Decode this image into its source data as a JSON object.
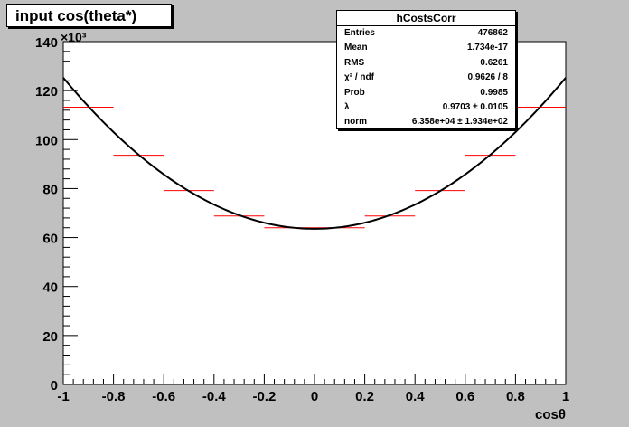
{
  "title": "input cos(theta*)",
  "stats": {
    "name": "hCostsCorr",
    "rows": [
      {
        "key": "Entries",
        "value": "476862"
      },
      {
        "key": "Mean",
        "value": "1.734e-17"
      },
      {
        "key": "RMS",
        "value": "0.6261"
      },
      {
        "key": "χ² / ndf",
        "value": "0.9626 / 8"
      },
      {
        "key": "Prob",
        "value": "0.9985"
      },
      {
        "key": "λ",
        "value": "0.9703 ± 0.0105"
      },
      {
        "key": "norm",
        "value": "6.358e+04 ± 1.934e+02"
      }
    ]
  },
  "colors": {
    "background": "#c0c0c0",
    "plot_area": "#ffffff",
    "histogram": "#ff0000",
    "fit": "#000000"
  },
  "chart_data": {
    "type": "line",
    "xlabel": "cosθ",
    "ylabel": "",
    "y_multiplier": "×10³",
    "xlim": [
      -1,
      1
    ],
    "ylim": [
      0,
      140
    ],
    "x_ticks": [
      "-1",
      "-0.8",
      "-0.6",
      "-0.4",
      "-0.2",
      "0",
      "0.2",
      "0.4",
      "0.6",
      "0.8",
      "1"
    ],
    "y_ticks": [
      "0",
      "20",
      "40",
      "60",
      "80",
      "100",
      "120",
      "140"
    ],
    "series": [
      {
        "kind": "histogram",
        "bin_edges": [
          -1,
          -0.8,
          -0.6,
          -0.4,
          -0.2,
          0,
          0.2,
          0.4,
          0.6,
          0.8,
          1
        ],
        "values": [
          113.2,
          93.6,
          79.2,
          68.8,
          64.0,
          64.0,
          68.8,
          79.2,
          93.6,
          113.2
        ]
      },
      {
        "kind": "fit",
        "function": "norm*(1+lambda*x^2)",
        "norm": 63.58,
        "lambda": 0.9703
      }
    ],
    "grid": false,
    "legend": "top-right"
  }
}
